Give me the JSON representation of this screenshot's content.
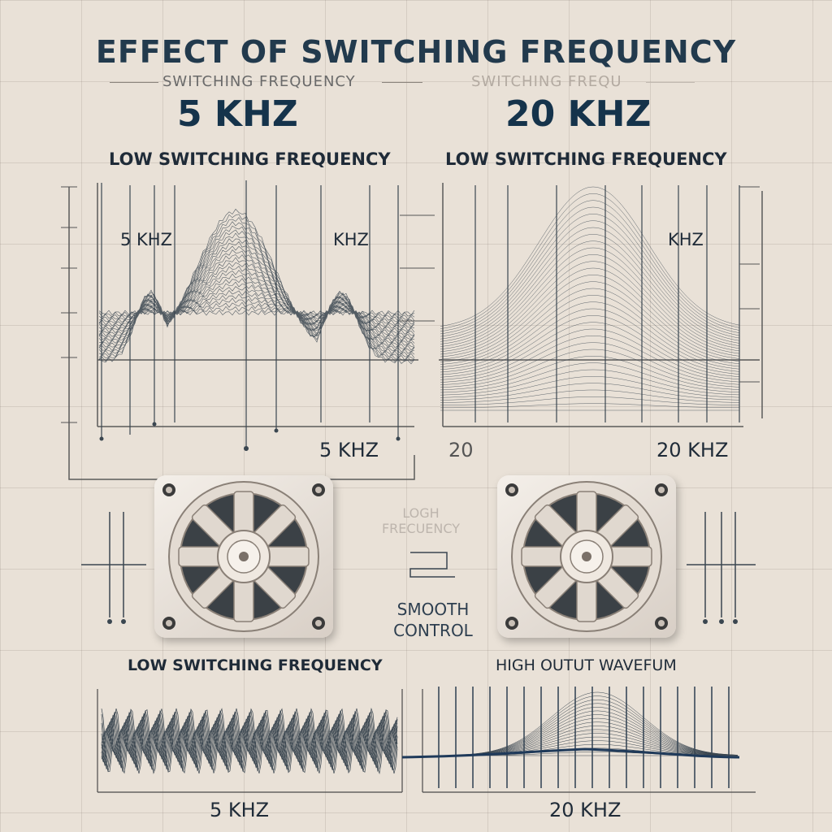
{
  "title": "EFFECT OF SWITCHING FREQUENCY",
  "header": {
    "sub_left": "SWITCHING FREQUENCY",
    "sub_right": "SWITCHING FREQU"
  },
  "left": {
    "freq_big": "5 KHZ",
    "label": "LOW SWITCHING FREQUENCY",
    "inner_label": "5 KHZ",
    "inner_label2": "KHZ",
    "axis_label": "5 KHZ",
    "lower_label": "LOW SWITCHING FREQUENCY",
    "bottom_axis": "5 KHZ"
  },
  "right": {
    "freq_big": "20 KHZ",
    "label": "LOW SWITCHING FREQUENCY",
    "inner_label": "KHZ",
    "axis_label_left": "20",
    "axis_label_right": "20 KHZ",
    "lower_label": "HIGH OUTUT WAVEFUM",
    "bottom_axis": "20 KHZ"
  },
  "middle": {
    "faint_text": "LOGH FRECUENCY",
    "smooth_line1": "SMOOTH",
    "smooth_line2": "CONTROL"
  },
  "colors": {
    "background": "#e9e1d7",
    "ink": "#1f2b38",
    "title": "#223a4d",
    "wave": "#3a4650"
  },
  "icons": [
    "gear-icon",
    "gear-icon"
  ]
}
